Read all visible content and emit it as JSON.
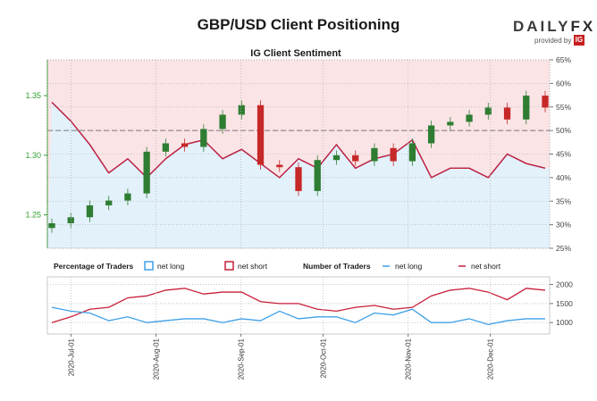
{
  "header": {
    "title": "GBP/USD Client Positioning",
    "brand_daily": "DAILY",
    "brand_fx": "FX",
    "provided_by": "provided by",
    "ig_logo": "IG"
  },
  "colors": {
    "long": "#3ea0e8",
    "short": "#c81e3a",
    "long_fill": "#e3f1fb",
    "short_fill": "#fbe4e6",
    "candle_up": "#2e7d32",
    "candle_down": "#c62828",
    "left_axis": "#2e9e2e"
  },
  "chart_data": [
    {
      "type": "candlestick",
      "title": "IG Client Sentiment",
      "left_axis": {
        "ticks": [
          "1.25",
          "1.30",
          "1.35"
        ],
        "range": [
          1.222,
          1.38
        ]
      },
      "right_axis": {
        "ticks": [
          "25%",
          "30%",
          "35%",
          "40%",
          "45%",
          "50%",
          "55%",
          "60%",
          "65%"
        ],
        "range": [
          25,
          65
        ]
      },
      "x": [
        "2020-Jun-24",
        "2020-Jul-01",
        "2020-Jul-08",
        "2020-Jul-15",
        "2020-Jul-22",
        "2020-Jul-29",
        "2020-Aug-05",
        "2020-Aug-12",
        "2020-Aug-19",
        "2020-Aug-26",
        "2020-Sep-02",
        "2020-Sep-09",
        "2020-Sep-16",
        "2020-Sep-23",
        "2020-Sep-30",
        "2020-Oct-07",
        "2020-Oct-14",
        "2020-Oct-21",
        "2020-Oct-28",
        "2020-Nov-04",
        "2020-Nov-11",
        "2020-Nov-18",
        "2020-Nov-25",
        "2020-Dec-02",
        "2020-Dec-09",
        "2020-Dec-16",
        "2020-Dec-21"
      ],
      "price_close": [
        1.243,
        1.248,
        1.258,
        1.262,
        1.268,
        1.303,
        1.31,
        1.307,
        1.322,
        1.334,
        1.342,
        1.292,
        1.29,
        1.27,
        1.296,
        1.3,
        1.295,
        1.306,
        1.295,
        1.31,
        1.325,
        1.328,
        1.334,
        1.34,
        1.33,
        1.35,
        1.34
      ],
      "series": [
        {
          "name": "net long",
          "values": [
            0.56,
            0.52,
            0.47,
            0.41,
            0.44,
            0.4,
            0.44,
            0.47,
            0.48,
            0.44,
            0.46,
            0.43,
            0.4,
            0.44,
            0.42,
            0.47,
            0.42,
            0.44,
            0.45,
            0.48,
            0.4,
            0.42,
            0.42,
            0.4,
            0.45,
            0.43,
            0.42
          ]
        },
        {
          "name": "net short",
          "values": [
            0.44,
            0.48,
            0.53,
            0.59,
            0.56,
            0.6,
            0.56,
            0.53,
            0.52,
            0.56,
            0.54,
            0.57,
            0.6,
            0.56,
            0.58,
            0.53,
            0.58,
            0.56,
            0.55,
            0.52,
            0.6,
            0.58,
            0.58,
            0.6,
            0.55,
            0.57,
            0.58
          ]
        }
      ],
      "grid": true
    },
    {
      "type": "line",
      "left_legend": {
        "title": "Percentage of Traders",
        "items": [
          "net long",
          "net short"
        ]
      },
      "right_legend": {
        "title": "Number of Traders",
        "items": [
          "net long",
          "net short"
        ]
      },
      "y_ticks": [
        "1000",
        "1500",
        "2000"
      ],
      "ylim": [
        700,
        2200
      ],
      "x_ticks": [
        "2020-Jul-01",
        "2020-Aug-01",
        "2020-Sep-01",
        "2020-Oct-01",
        "2020-Nov-01",
        "2020-Dec-01"
      ],
      "series": [
        {
          "name": "net long",
          "values": [
            1400,
            1300,
            1250,
            1050,
            1150,
            1000,
            1050,
            1100,
            1100,
            1000,
            1100,
            1050,
            1300,
            1100,
            1150,
            1150,
            1000,
            1250,
            1200,
            1350,
            1000,
            1000,
            1100,
            950,
            1050,
            1100,
            1100
          ]
        },
        {
          "name": "net short",
          "values": [
            1000,
            1150,
            1350,
            1400,
            1650,
            1700,
            1850,
            1900,
            1750,
            1800,
            1800,
            1550,
            1500,
            1500,
            1350,
            1300,
            1400,
            1450,
            1350,
            1400,
            1700,
            1850,
            1900,
            1800,
            1600,
            1900,
            1850
          ]
        }
      ]
    }
  ]
}
